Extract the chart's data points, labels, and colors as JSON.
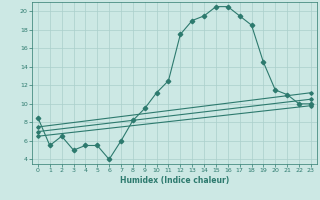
{
  "xlabel": "Humidex (Indice chaleur)",
  "background_color": "#cce8e4",
  "grid_color": "#aacfcb",
  "line_color": "#2d7a6e",
  "xlim": [
    -0.5,
    23.5
  ],
  "ylim": [
    3.5,
    21.0
  ],
  "xticks": [
    0,
    1,
    2,
    3,
    4,
    5,
    6,
    7,
    8,
    9,
    10,
    11,
    12,
    13,
    14,
    15,
    16,
    17,
    18,
    19,
    20,
    21,
    22,
    23
  ],
  "yticks": [
    4,
    6,
    8,
    10,
    12,
    14,
    16,
    18,
    20
  ],
  "main_x": [
    0,
    1,
    2,
    3,
    4,
    5,
    6,
    7,
    8,
    9,
    10,
    11,
    12,
    13,
    14,
    15,
    16,
    17,
    18,
    19,
    20,
    21,
    22,
    23
  ],
  "main_y": [
    8.5,
    5.5,
    6.5,
    5.0,
    5.5,
    5.5,
    4.0,
    6.0,
    8.2,
    9.5,
    11.2,
    12.5,
    17.5,
    19.0,
    19.5,
    20.5,
    20.5,
    19.5,
    18.5,
    14.5,
    11.5,
    11.0,
    10.0,
    10.0
  ],
  "line2_x": [
    0,
    23
  ],
  "line2_y": [
    6.5,
    9.8
  ],
  "line3_x": [
    0,
    23
  ],
  "line3_y": [
    7.0,
    10.5
  ],
  "line4_x": [
    0,
    23
  ],
  "line4_y": [
    7.5,
    11.2
  ],
  "xlabel_fontsize": 5.5,
  "tick_fontsize": 4.5
}
